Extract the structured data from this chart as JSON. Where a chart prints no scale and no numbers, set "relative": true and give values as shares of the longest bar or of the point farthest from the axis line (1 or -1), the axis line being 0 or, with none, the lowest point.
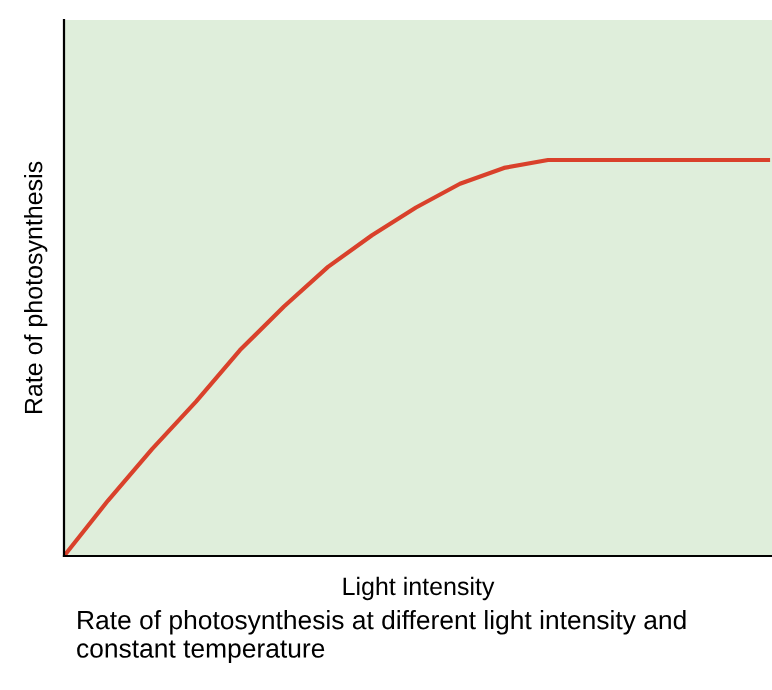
{
  "chart_data": {
    "type": "line",
    "relative": true,
    "xlabel": "Light intensity",
    "ylabel": "Rate of photosynthesis",
    "categories": [
      null,
      null,
      null,
      null,
      null,
      null,
      null,
      null,
      null,
      null,
      null,
      null,
      null,
      null,
      null,
      null,
      null
    ],
    "series": [
      {
        "color": "#d9412b",
        "values": [
          0,
          0.14,
          0.27,
          0.39,
          0.52,
          0.63,
          0.73,
          0.81,
          0.88,
          0.94,
          0.98,
          1,
          1,
          1,
          1,
          1,
          1
        ]
      }
    ],
    "annotations": [
      "Rate of photosynthesis at different light intensity and constant temperature"
    ],
    "grid": false,
    "legend": false,
    "marker": "none",
    "line_style": "solid"
  }
}
